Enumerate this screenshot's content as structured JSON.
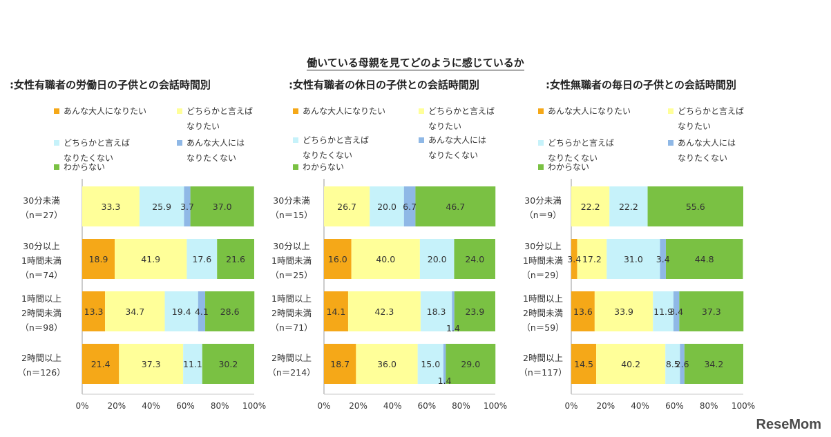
{
  "main_title": "働いている母親を見てどのように感じているか",
  "brand": "ReseMom",
  "legend": [
    {
      "name": "あんな大人になりたい",
      "color": "#F5A818"
    },
    {
      "name": "どちらかと言えば\nなりたい",
      "color": "#FFFF99"
    },
    {
      "name": "どちらかと言えば\nなりたくない",
      "color": "#C6F2FA"
    },
    {
      "name": "あんな大人には\nなりたくない",
      "color": "#8FB8E6"
    },
    {
      "name": "わからない",
      "color": "#7AC143"
    }
  ],
  "axis_ticks": [
    "0%",
    "20%",
    "40%",
    "60%",
    "80%",
    "100%"
  ],
  "chart_data": [
    {
      "type": "bar",
      "stacked": true,
      "orientation": "horizontal",
      "title": ":女性有職者の労働日の子供との会話時間別",
      "xlim": [
        0,
        100
      ],
      "categories": [
        "30分未満\n（n＝27）",
        "30分以上\n1時間未満\n（n＝74）",
        "1時間以上\n2時間未満\n（n＝98）",
        "2時間以上\n（n＝126）"
      ],
      "series": [
        {
          "name": "あんな大人になりたい",
          "values": [
            0,
            18.9,
            13.3,
            21.4
          ],
          "labels": [
            "",
            "18.9",
            "13.3",
            "21.4"
          ]
        },
        {
          "name": "どちらかと言えば\nなりたい",
          "values": [
            33.3,
            41.9,
            34.7,
            37.3
          ],
          "labels": [
            "33.3",
            "41.9",
            "34.7",
            "37.3"
          ]
        },
        {
          "name": "どちらかと言えば\nなりたくない",
          "values": [
            25.9,
            17.6,
            19.4,
            11.1
          ],
          "labels": [
            "25.9",
            "17.6",
            "19.4",
            "11.1"
          ]
        },
        {
          "name": "あんな大人には\nなりたくない",
          "values": [
            3.7,
            0,
            4.1,
            0
          ],
          "labels": [
            "3.7",
            "",
            "4.1",
            ""
          ]
        },
        {
          "name": "わからない",
          "values": [
            37.0,
            21.6,
            28.6,
            30.2
          ],
          "labels": [
            "37.0",
            "21.6",
            "28.6",
            "30.2"
          ]
        }
      ]
    },
    {
      "type": "bar",
      "stacked": true,
      "orientation": "horizontal",
      "title": ":女性有職者の休日の子供との会話時間別",
      "xlim": [
        0,
        100
      ],
      "categories": [
        "30分未満\n（n＝15）",
        "30分以上\n1時間未満\n（n＝25）",
        "1時間以上\n2時間未満\n（n＝71）",
        "2時間以上\n（n＝214）"
      ],
      "series": [
        {
          "name": "あんな大人になりたい",
          "values": [
            0,
            16.0,
            14.1,
            18.7
          ],
          "labels": [
            "",
            "16.0",
            "14.1",
            "18.7"
          ]
        },
        {
          "name": "どちらかと言えば\nなりたい",
          "values": [
            26.7,
            40.0,
            42.3,
            36.0
          ],
          "labels": [
            "26.7",
            "40.0",
            "42.3",
            "36.0"
          ]
        },
        {
          "name": "どちらかと言えば\nなりたくない",
          "values": [
            20.0,
            20.0,
            18.3,
            15.0
          ],
          "labels": [
            "20.0",
            "20.0",
            "18.3",
            "15.0"
          ]
        },
        {
          "name": "あんな大人には\nなりたくない",
          "values": [
            6.7,
            0,
            1.4,
            1.4
          ],
          "labels": [
            "6.7",
            "",
            "1.4",
            "1.4"
          ]
        },
        {
          "name": "わからない",
          "values": [
            46.7,
            24.0,
            23.9,
            29.0
          ],
          "labels": [
            "46.7",
            "24.0",
            "23.9",
            "29.0"
          ]
        }
      ]
    },
    {
      "type": "bar",
      "stacked": true,
      "orientation": "horizontal",
      "title": ":女性無職者の毎日の子供との会話時間別",
      "xlim": [
        0,
        100
      ],
      "categories": [
        "30分未満\n（n＝9）",
        "30分以上\n1時間未満\n（n＝29）",
        "1時間以上\n2時間未満\n（n＝59）",
        "2時間以上\n（n＝117）"
      ],
      "series": [
        {
          "name": "あんな大人になりたい",
          "values": [
            0,
            3.4,
            13.6,
            14.5
          ],
          "labels": [
            "",
            "3.4",
            "13.6",
            "14.5"
          ]
        },
        {
          "name": "どちらかと言えば\nなりたい",
          "values": [
            22.2,
            17.2,
            33.9,
            40.2
          ],
          "labels": [
            "22.2",
            "17.2",
            "33.9",
            "40.2"
          ]
        },
        {
          "name": "どちらかと言えば\nなりたくない",
          "values": [
            22.2,
            31.0,
            11.9,
            8.5
          ],
          "labels": [
            "22.2",
            "31.0",
            "11.9",
            "8.5"
          ]
        },
        {
          "name": "あんな大人には\nなりたくない",
          "values": [
            0,
            3.4,
            3.4,
            2.6
          ],
          "labels": [
            "",
            "3.4",
            "3.4",
            "2.6"
          ]
        },
        {
          "name": "わからない",
          "values": [
            55.6,
            44.8,
            37.3,
            34.2
          ],
          "labels": [
            "55.6",
            "44.8",
            "37.3",
            "34.2"
          ]
        }
      ]
    }
  ]
}
